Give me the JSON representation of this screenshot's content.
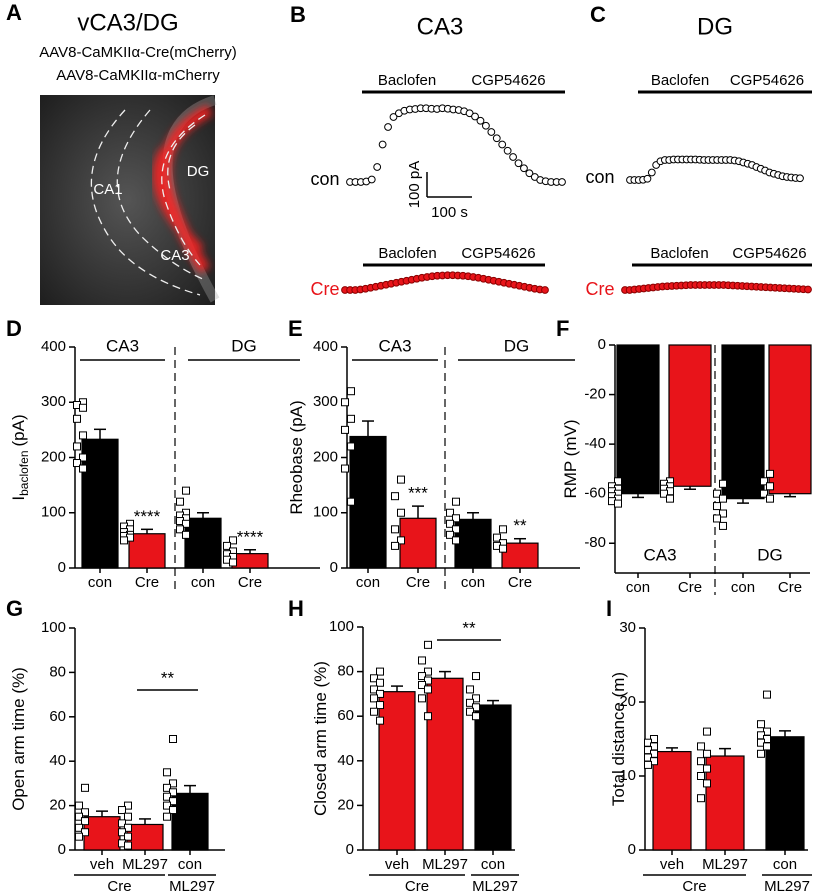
{
  "panel_a": {
    "panel": "A",
    "title": "vCA3/DG",
    "lines": [
      "AAV8-CaMKIIα-Cre(mCherry)",
      "AAV8-CaMKIIα-mCherry"
    ],
    "regions": [
      "CA1",
      "DG",
      "CA3"
    ]
  },
  "chart_data": [
    {
      "type": "trace",
      "panel": "B",
      "title": "CA3",
      "drugs": [
        "Baclofen",
        "CGP54626"
      ],
      "series": [
        {
          "name": "con",
          "color": "#000000",
          "fill": "#ffffff",
          "values": [
            0,
            0,
            0,
            2,
            10,
            60,
            150,
            220,
            260,
            275,
            285,
            290,
            292,
            295,
            295,
            293,
            292,
            295,
            293,
            290,
            288,
            283,
            275,
            262,
            245,
            225,
            200,
            175,
            150,
            125,
            100,
            75,
            55,
            35,
            20,
            8,
            3,
            0,
            0,
            0
          ]
        },
        {
          "name": "Cre",
          "color": "#8b0000",
          "fill": "#e8141a",
          "values": [
            0,
            0,
            0,
            2,
            5,
            9,
            13,
            17,
            21,
            25,
            29,
            33,
            37,
            41,
            45,
            49,
            52,
            55,
            57,
            58,
            59,
            59,
            58,
            57,
            55,
            52,
            49,
            45,
            41,
            37,
            33,
            29,
            25,
            21,
            17,
            13,
            9,
            5,
            2,
            0
          ]
        }
      ],
      "scale_bar": {
        "y_value": 100,
        "y_label": "100 pA",
        "x_value": 100,
        "x_label": "100 s"
      }
    },
    {
      "type": "trace",
      "panel": "C",
      "title": "DG",
      "drugs": [
        "Baclofen",
        "CGP54626"
      ],
      "series": [
        {
          "name": "con",
          "color": "#000000",
          "fill": "#ffffff",
          "values": [
            0,
            0,
            0,
            1,
            5,
            30,
            60,
            75,
            80,
            80,
            82,
            82,
            82,
            82,
            82,
            82,
            81,
            80,
            80,
            80,
            80,
            80,
            80,
            80,
            78,
            75,
            70,
            65,
            60,
            52,
            45,
            38,
            30,
            25,
            20,
            15,
            12,
            10,
            8,
            7
          ]
        },
        {
          "name": "Cre",
          "color": "#8b0000",
          "fill": "#e8141a",
          "values": [
            0,
            0,
            2,
            4,
            6,
            8,
            10,
            12,
            14,
            15,
            16,
            17,
            18,
            19,
            20,
            20,
            20,
            20,
            20,
            20,
            20,
            20,
            19,
            18,
            17,
            16,
            15,
            14,
            13,
            12,
            11,
            10,
            9,
            8,
            7,
            6,
            5,
            4,
            3,
            2
          ]
        }
      ]
    },
    {
      "type": "bar",
      "panel": "D",
      "ylabel": {
        "text": "I",
        "sub": "baclofen",
        "unit": "(pA)"
      },
      "ylim": [
        0,
        400
      ],
      "yticks": [
        0,
        100,
        200,
        300,
        400
      ],
      "categories": [
        "con",
        "Cre",
        "con",
        "Cre"
      ],
      "groups": [
        "CA3",
        "DG"
      ],
      "values": [
        233,
        62,
        90,
        26
      ],
      "errors": [
        18,
        8,
        10,
        7
      ],
      "colors": [
        "#000000",
        "#e8141a",
        "#000000",
        "#e8141a"
      ],
      "annotations": [
        null,
        "****",
        null,
        "****"
      ],
      "points": [
        [
          300,
          295,
          290,
          270,
          240,
          220,
          200,
          190,
          180
        ],
        [
          80,
          75,
          70,
          65,
          60,
          58,
          55,
          50
        ],
        [
          140,
          120,
          100,
          95,
          90,
          85,
          80,
          70,
          60
        ],
        [
          50,
          40,
          30,
          25,
          20,
          15,
          10
        ]
      ]
    },
    {
      "type": "bar",
      "panel": "E",
      "ylabel": {
        "text": "Rheobase (pA)"
      },
      "ylim": [
        0,
        400
      ],
      "yticks": [
        0,
        100,
        200,
        300,
        400
      ],
      "categories": [
        "con",
        "Cre",
        "con",
        "Cre"
      ],
      "groups": [
        "CA3",
        "DG"
      ],
      "values": [
        238,
        90,
        88,
        45
      ],
      "errors": [
        28,
        22,
        12,
        8
      ],
      "colors": [
        "#000000",
        "#e8141a",
        "#000000",
        "#e8141a"
      ],
      "annotations": [
        null,
        "***",
        null,
        "**"
      ],
      "points": [
        [
          320,
          300,
          270,
          250,
          220,
          180,
          120
        ],
        [
          160,
          130,
          100,
          70,
          50,
          40
        ],
        [
          120,
          100,
          90,
          80,
          70,
          60,
          50
        ],
        [
          70,
          55,
          45,
          40,
          35
        ]
      ]
    },
    {
      "type": "bar",
      "panel": "F",
      "ylabel": {
        "text": "RMP (mV)"
      },
      "ylim": [
        -92,
        0
      ],
      "yticks": [
        0,
        -20,
        -40,
        -60,
        -80
      ],
      "categories": [
        "con",
        "Cre",
        "con",
        "Cre"
      ],
      "groups": [
        "CA3",
        "DG"
      ],
      "values": [
        -60,
        -57,
        -62,
        -60
      ],
      "errors": [
        1.5,
        1.2,
        1.8,
        1.2
      ],
      "colors": [
        "#000000",
        "#e8141a",
        "#000000",
        "#e8141a"
      ],
      "points": [
        [
          -55,
          -57,
          -58,
          -59,
          -60,
          -61,
          -62,
          -63,
          -64
        ],
        [
          -55,
          -56,
          -57,
          -58,
          -59,
          -60,
          -62
        ],
        [
          -56,
          -60,
          -62,
          -65,
          -68,
          -70,
          -73
        ],
        [
          -52,
          -55,
          -57,
          -60,
          -62
        ]
      ]
    },
    {
      "type": "bar",
      "panel": "G",
      "ylabel": {
        "text": "Open arm time (%)"
      },
      "ylim": [
        0,
        100
      ],
      "yticks": [
        0,
        20,
        40,
        60,
        80,
        100
      ],
      "categories": [
        "veh",
        "ML297",
        "con"
      ],
      "groups": [
        "Cre",
        "ML297"
      ],
      "values": [
        15,
        11.5,
        25.5
      ],
      "errors": [
        2.5,
        2.5,
        3.5
      ],
      "colors": [
        "#e8141a",
        "#e8141a",
        "#000000"
      ],
      "comparison": "**",
      "points": [
        [
          28,
          20,
          17,
          15,
          13,
          10,
          8,
          6
        ],
        [
          20,
          18,
          15,
          12,
          10,
          8,
          6,
          3,
          2
        ],
        [
          50,
          35,
          30,
          28,
          26,
          24,
          22,
          20,
          18,
          15
        ]
      ]
    },
    {
      "type": "bar",
      "panel": "H",
      "ylabel": {
        "text": "Closed arm time (%)"
      },
      "ylim": [
        0,
        100
      ],
      "yticks": [
        0,
        20,
        40,
        60,
        80,
        100
      ],
      "categories": [
        "veh",
        "ML297",
        "con"
      ],
      "groups": [
        "Cre",
        "ML297"
      ],
      "values": [
        71,
        77,
        65
      ],
      "errors": [
        2.5,
        3,
        2
      ],
      "colors": [
        "#e8141a",
        "#e8141a",
        "#000000"
      ],
      "comparison": "**",
      "points": [
        [
          80,
          77,
          75,
          72,
          70,
          68,
          65,
          62,
          58
        ],
        [
          92,
          85,
          80,
          78,
          76,
          74,
          72,
          68,
          60
        ],
        [
          78,
          72,
          68,
          66,
          64,
          62,
          60
        ]
      ]
    },
    {
      "type": "bar",
      "panel": "I",
      "ylabel": {
        "text": "Total distance (m)"
      },
      "ylim": [
        0,
        30
      ],
      "yticks": [
        0,
        10,
        20,
        30
      ],
      "categories": [
        "veh",
        "ML297",
        "con"
      ],
      "groups": [
        "Cre",
        "ML297"
      ],
      "values": [
        13.3,
        12.7,
        15.3
      ],
      "errors": [
        0.5,
        1,
        0.8
      ],
      "colors": [
        "#e8141a",
        "#e8141a",
        "#000000"
      ],
      "points": [
        [
          15,
          14.5,
          14,
          13.5,
          13,
          12.5,
          12,
          11.5
        ],
        [
          16,
          14,
          13,
          12,
          11,
          10,
          9,
          7
        ],
        [
          21,
          17,
          16,
          15.5,
          15,
          14.5,
          14,
          13
        ]
      ]
    }
  ]
}
